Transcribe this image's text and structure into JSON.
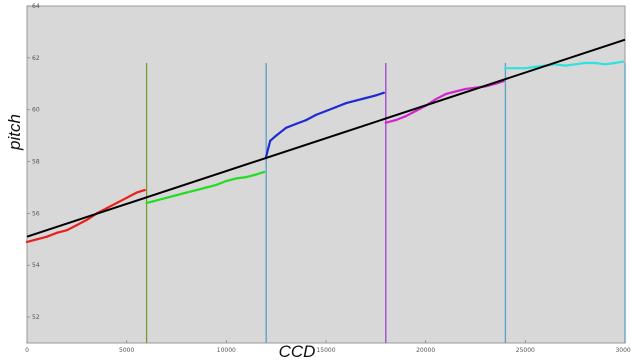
{
  "chart_data": {
    "type": "line",
    "title": "",
    "xlabel": "CCD",
    "ylabel": "pitch",
    "xlim": [
      0,
      30000
    ],
    "ylim": [
      51,
      64
    ],
    "xticks": [
      "0",
      "5000",
      "10000",
      "15000",
      "20000",
      "25000",
      "30000"
    ],
    "yticks": [
      "52",
      "54",
      "56",
      "58",
      "60",
      "62",
      "64"
    ],
    "grid": false,
    "legend": "none",
    "background": "#d8d8d8",
    "series": [
      {
        "color": "#e8211d",
        "x": [
          0,
          500,
          1000,
          1500,
          2000,
          2500,
          3000,
          3500,
          4000,
          4500,
          5000,
          5500,
          5900
        ],
        "y": [
          54.9,
          55.0,
          55.1,
          55.25,
          55.35,
          55.55,
          55.75,
          56.0,
          56.2,
          56.4,
          56.6,
          56.8,
          56.9
        ]
      },
      {
        "color": "#22dd22",
        "x": [
          6000,
          6500,
          7000,
          7500,
          8000,
          8500,
          9000,
          9500,
          10000,
          10500,
          11000,
          11500,
          11900
        ],
        "y": [
          56.4,
          56.5,
          56.6,
          56.7,
          56.8,
          56.9,
          57.0,
          57.1,
          57.25,
          57.35,
          57.4,
          57.5,
          57.6
        ]
      },
      {
        "color": "#1f2bd2",
        "x": [
          12000,
          12200,
          12500,
          13000,
          13500,
          14000,
          14500,
          15000,
          15500,
          16000,
          16500,
          17000,
          17500,
          17900
        ],
        "y": [
          58.2,
          58.8,
          59.0,
          59.3,
          59.45,
          59.6,
          59.8,
          59.95,
          60.1,
          60.25,
          60.35,
          60.45,
          60.55,
          60.65
        ]
      },
      {
        "color": "#d424cf",
        "x": [
          18000,
          18500,
          19000,
          19500,
          20000,
          20500,
          21000,
          21500,
          22000,
          22500,
          23000,
          23500,
          23900
        ],
        "y": [
          59.5,
          59.6,
          59.75,
          59.95,
          60.15,
          60.4,
          60.6,
          60.7,
          60.8,
          60.85,
          60.9,
          61.0,
          61.1
        ]
      },
      {
        "color": "#2de2df",
        "x": [
          24000,
          24500,
          25000,
          25500,
          26000,
          26500,
          27000,
          27500,
          28000,
          28500,
          29000,
          29500,
          29900
        ],
        "y": [
          61.6,
          61.6,
          61.6,
          61.65,
          61.7,
          61.75,
          61.7,
          61.75,
          61.8,
          61.8,
          61.75,
          61.8,
          61.85
        ]
      }
    ],
    "drops": [
      {
        "x": 6000,
        "color": "#7a9a3a"
      },
      {
        "x": 12000,
        "color": "#5aa0c8"
      },
      {
        "x": 18000,
        "color": "#a040d0"
      },
      {
        "x": 24000,
        "color": "#5aa0c8"
      },
      {
        "x": 30000,
        "color": "#5aa0c8"
      }
    ],
    "fit_line": {
      "color": "#000000",
      "x": [
        0,
        30000
      ],
      "y": [
        55.1,
        62.7
      ]
    }
  }
}
